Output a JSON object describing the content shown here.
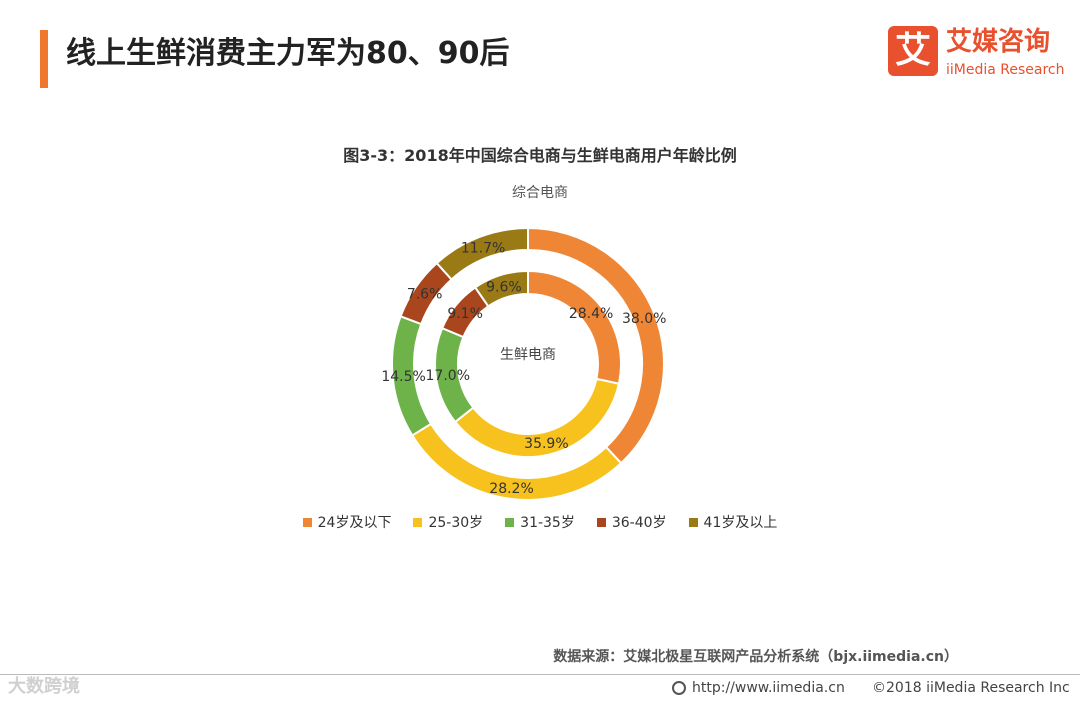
{
  "page": {
    "title": "线上生鲜消费主力军为80、90后"
  },
  "logo": {
    "mark": "艾",
    "name_cn": "艾媒咨询",
    "name_en": "iiMedia Research"
  },
  "chart_data": {
    "type": "donut",
    "title": "图3-3：2018年中国综合电商与生鲜电商用户年龄比例",
    "categories": [
      "24岁及以下",
      "25-30岁",
      "31-35岁",
      "36-40岁",
      "41岁及以上"
    ],
    "colors": [
      "#ee8636",
      "#f7c21d",
      "#6db34a",
      "#a9461e",
      "#9a7a14"
    ],
    "series": [
      {
        "name": "综合电商",
        "values": [
          38.0,
          28.2,
          14.5,
          7.6,
          11.7
        ],
        "labels": [
          "38.0%",
          "28.2%",
          "14.5%",
          "7.6%",
          "11.7%"
        ]
      },
      {
        "name": "生鲜电商",
        "values": [
          28.4,
          35.9,
          17.0,
          9.1,
          9.6
        ],
        "labels": [
          "28.4%",
          "35.9%",
          "17.0%",
          "9.1%",
          "9.6%"
        ]
      }
    ],
    "legend_position": "bottom"
  },
  "source": "数据来源：艾媒北极星互联网产品分析系统（bjx.iimedia.cn）",
  "footer": {
    "url": "http://www.iimedia.cn",
    "copyright": "©2018  iiMedia Research  Inc"
  },
  "watermark": "大数跨境"
}
